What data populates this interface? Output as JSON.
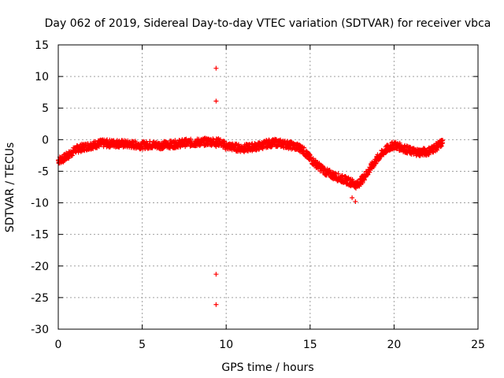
{
  "chart_data": {
    "type": "scatter",
    "title": "Day 062 of 2019, Sidereal Day-to-day VTEC variation (SDTVAR) for receiver vbca",
    "xlabel": "GPS time / hours",
    "ylabel": "SDTVAR / TECUs",
    "xlim": [
      0,
      25
    ],
    "ylim": [
      -30,
      15
    ],
    "x_ticks": [
      0,
      5,
      10,
      15,
      20,
      25
    ],
    "y_ticks": [
      15,
      10,
      5,
      0,
      -5,
      -10,
      -15,
      -20,
      -25,
      -30
    ],
    "grid": true,
    "marker": "+",
    "color": "#ff0000",
    "series": [
      {
        "name": "SDTVAR",
        "trend_x": [
          0.0,
          0.3,
          0.6,
          1.0,
          1.5,
          2.0,
          2.5,
          3.0,
          3.5,
          4.0,
          4.5,
          5.0,
          5.5,
          6.0,
          6.5,
          7.0,
          7.5,
          8.0,
          8.5,
          9.0,
          9.4,
          9.6,
          10.0,
          10.5,
          11.0,
          11.5,
          12.0,
          12.5,
          13.0,
          13.5,
          14.0,
          14.5,
          15.0,
          15.5,
          16.0,
          16.5,
          17.0,
          17.5,
          17.8,
          18.2,
          18.6,
          19.0,
          19.5,
          20.0,
          20.5,
          21.0,
          21.5,
          22.0,
          22.5,
          22.9
        ],
        "trend_y": [
          -3.3,
          -3.0,
          -2.5,
          -1.6,
          -1.2,
          -0.9,
          -0.6,
          -0.6,
          -0.6,
          -0.7,
          -0.8,
          -0.9,
          -0.8,
          -0.9,
          -0.8,
          -0.7,
          -0.5,
          -0.5,
          -0.4,
          -0.3,
          -0.4,
          -0.4,
          -1.0,
          -1.2,
          -1.4,
          -1.2,
          -1.0,
          -0.6,
          -0.5,
          -0.7,
          -1.0,
          -1.4,
          -3.0,
          -4.2,
          -5.2,
          -5.8,
          -6.3,
          -6.8,
          -7.2,
          -6.0,
          -4.5,
          -3.0,
          -1.6,
          -0.8,
          -1.3,
          -1.8,
          -2.0,
          -1.9,
          -1.2,
          -0.4
        ],
        "spread": 0.6,
        "outliers": [
          {
            "x": 9.4,
            "y": 11.3
          },
          {
            "x": 9.4,
            "y": 6.1
          },
          {
            "x": 9.4,
            "y": -21.3
          },
          {
            "x": 9.4,
            "y": -26.1
          },
          {
            "x": 9.4,
            "y": -1.1
          },
          {
            "x": 17.7,
            "y": -9.8
          },
          {
            "x": 17.5,
            "y": -9.2
          }
        ]
      }
    ]
  }
}
